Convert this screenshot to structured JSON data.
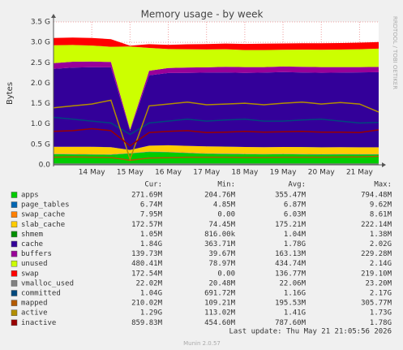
{
  "chart_data": {
    "type": "stacked_area_line",
    "title": "Memory usage - by week",
    "y_label": "Bytes",
    "side_label": "RRDTOOL / TOBI OETIKER",
    "categories": [
      null,
      null,
      "14 May",
      null,
      "15 May",
      null,
      "16 May",
      null,
      "17 May",
      null,
      "18 May",
      null,
      "19 May",
      null,
      "20 May",
      null,
      "21 May",
      null
    ],
    "ylim": [
      0,
      3758096384
    ],
    "yticks": [
      {
        "value": 0,
        "label": "0.0"
      },
      {
        "value": 536870912,
        "label": "0.5 G"
      },
      {
        "value": 1073741824,
        "label": "1.0 G"
      },
      {
        "value": 1610612736,
        "label": "1.5 G"
      },
      {
        "value": 2147483648,
        "label": "2.0 G"
      },
      {
        "value": 2684354560,
        "label": "2.5 G"
      },
      {
        "value": 3221225472,
        "label": "3.0 G"
      },
      {
        "value": 3758096384,
        "label": "3.5 G"
      }
    ],
    "grid": true,
    "legend_headers": [
      "Cur:",
      "Min:",
      "Avg:",
      "Max:"
    ],
    "series": [
      {
        "name": "apps",
        "color": "#00CC00",
        "stack": true,
        "values": [
          280000000,
          275000000,
          270000000,
          265000000,
          300000000,
          340000000,
          330000000,
          310000000,
          290000000,
          285000000,
          280000000,
          275000000,
          280000000,
          275000000,
          270000000,
          275000000,
          272000000,
          272000000
        ],
        "stats": [
          "271.69M",
          "204.76M",
          "355.47M",
          "794.48M"
        ]
      },
      {
        "name": "page_tables",
        "color": "#0066B3",
        "stack": true,
        "values": [
          7000000,
          7000000,
          6000000,
          6000000,
          5000000,
          6000000,
          7000000,
          7000000,
          7000000,
          7000000,
          7000000,
          7000000,
          7000000,
          7000000,
          7000000,
          7000000,
          7000000,
          7000000
        ],
        "stats": [
          "6.74M",
          "4.85M",
          "6.87M",
          "9.62M"
        ]
      },
      {
        "name": "swap_cache",
        "color": "#FF8000",
        "stack": true,
        "values": [
          8000000,
          8000000,
          9000000,
          8000000,
          6000000,
          7000000,
          7000000,
          7000000,
          7000000,
          7000000,
          7000000,
          7000000,
          7000000,
          8000000,
          8000000,
          8000000,
          8000000,
          8000000
        ],
        "stats": [
          "7.95M",
          "0.00",
          "6.03M",
          "8.61M"
        ]
      },
      {
        "name": "slab_cache",
        "color": "#FFCC00",
        "stack": true,
        "values": [
          180000000,
          185000000,
          190000000,
          185000000,
          80000000,
          150000000,
          170000000,
          175000000,
          180000000,
          180000000,
          175000000,
          175000000,
          175000000,
          178000000,
          175000000,
          175000000,
          173000000,
          173000000
        ],
        "stats": [
          "172.57M",
          "74.45M",
          "175.21M",
          "222.14M"
        ]
      },
      {
        "name": "shmem",
        "color": "#008F00",
        "stack": true,
        "values": [
          1050000,
          1050000,
          1050000,
          1050000,
          1000000,
          1040000,
          1040000,
          1040000,
          1040000,
          1040000,
          1040000,
          1040000,
          1040000,
          1040000,
          1040000,
          1040000,
          1050000,
          1050000
        ],
        "stats": [
          "1.05M",
          "816.00k",
          "1.04M",
          "1.38M"
        ]
      },
      {
        "name": "cache",
        "color": "#330099",
        "stack": true,
        "values": [
          2050000000,
          2080000000,
          2090000000,
          2100000000,
          500000000,
          1850000000,
          1900000000,
          1920000000,
          1940000000,
          1950000000,
          1950000000,
          1960000000,
          1970000000,
          1960000000,
          1960000000,
          1960000000,
          1970000000,
          1975000000
        ],
        "stats": [
          "1.84G",
          "363.71M",
          "1.78G",
          "2.02G"
        ]
      },
      {
        "name": "buffers",
        "color": "#990099",
        "stack": true,
        "values": [
          150000000,
          155000000,
          150000000,
          140000000,
          40000000,
          120000000,
          130000000,
          140000000,
          140000000,
          150000000,
          150000000,
          145000000,
          145000000,
          150000000,
          150000000,
          145000000,
          140000000,
          140000000
        ],
        "stats": [
          "139.73M",
          "39.67M",
          "163.13M",
          "229.28M"
        ]
      },
      {
        "name": "unused",
        "color": "#CCFF00",
        "stack": true,
        "values": [
          470000000,
          440000000,
          420000000,
          400000000,
          2180000000,
          600000000,
          500000000,
          480000000,
          470000000,
          460000000,
          450000000,
          450000000,
          440000000,
          450000000,
          455000000,
          460000000,
          470000000,
          480000000
        ],
        "stats": [
          "480.41M",
          "78.97M",
          "434.74M",
          "2.14G"
        ]
      },
      {
        "name": "swap",
        "color": "#FF0000",
        "stack": true,
        "values": [
          190000000,
          195000000,
          200000000,
          200000000,
          20000000,
          100000000,
          110000000,
          130000000,
          140000000,
          150000000,
          160000000,
          165000000,
          168000000,
          170000000,
          170000000,
          172000000,
          173000000,
          173000000
        ],
        "stats": [
          "172.54M",
          "0.00",
          "136.77M",
          "219.10M"
        ]
      },
      {
        "name": "vmalloc_used",
        "color": "#808080",
        "stack": false,
        "values": [
          22000000,
          22000000,
          22000000,
          22000000,
          21000000,
          22000000,
          22000000,
          22000000,
          22000000,
          22000000,
          22000000,
          22000000,
          22000000,
          22000000,
          22000000,
          22000000,
          22000000,
          22000000
        ],
        "stats": [
          "22.02M",
          "20.48M",
          "22.06M",
          "23.20M"
        ]
      },
      {
        "name": "committed",
        "color": "#00487D",
        "stack": false,
        "values": [
          1250000000,
          1200000000,
          1150000000,
          1100000000,
          800000000,
          1100000000,
          1150000000,
          1200000000,
          1150000000,
          1180000000,
          1200000000,
          1150000000,
          1150000000,
          1180000000,
          1200000000,
          1150000000,
          1100000000,
          1115000000
        ],
        "stats": [
          "1.04G",
          "691.72M",
          "1.16G",
          "2.17G"
        ]
      },
      {
        "name": "mapped",
        "color": "#B35A00",
        "stack": false,
        "values": [
          200000000,
          210000000,
          200000000,
          195000000,
          120000000,
          180000000,
          190000000,
          200000000,
          200000000,
          200000000,
          195000000,
          195000000,
          200000000,
          200000000,
          200000000,
          205000000,
          210000000,
          225000000
        ],
        "stats": [
          "210.02M",
          "109.21M",
          "195.53M",
          "305.77M"
        ]
      },
      {
        "name": "active",
        "color": "#B38F00",
        "stack": false,
        "values": [
          1500000000,
          1550000000,
          1600000000,
          1700000000,
          150000000,
          1550000000,
          1600000000,
          1650000000,
          1580000000,
          1600000000,
          1620000000,
          1580000000,
          1620000000,
          1650000000,
          1600000000,
          1640000000,
          1600000000,
          1390000000
        ],
        "stats": [
          "1.29G",
          "113.02M",
          "1.41G",
          "1.73G"
        ]
      },
      {
        "name": "inactive",
        "color": "#990000",
        "stack": false,
        "values": [
          880000000,
          900000000,
          950000000,
          900000000,
          500000000,
          850000000,
          880000000,
          900000000,
          850000000,
          860000000,
          880000000,
          860000000,
          870000000,
          880000000,
          860000000,
          860000000,
          850000000,
          920000000
        ],
        "stats": [
          "859.83M",
          "454.60M",
          "787.60M",
          "1.78G"
        ]
      }
    ],
    "last_update": "Last update: Thu May 21 21:05:56 2026",
    "footer": "Munin 2.0.57"
  }
}
